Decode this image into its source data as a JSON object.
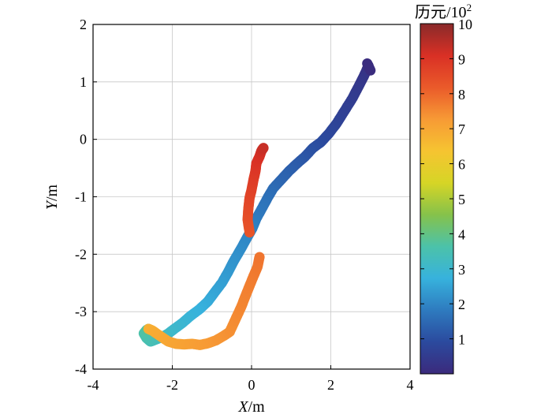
{
  "chart_data": {
    "type": "scatter",
    "title": "",
    "xlabel": {
      "var": "X",
      "unit": "/m"
    },
    "ylabel": {
      "var": "Y",
      "unit": "/m"
    },
    "xlim": [
      -4,
      4
    ],
    "ylim": [
      -4,
      2
    ],
    "xticks": [
      "-4",
      "-2",
      "0",
      "2",
      "4"
    ],
    "yticks": [
      "-4",
      "-3",
      "-2",
      "-1",
      "0",
      "1",
      "2"
    ],
    "grid": true,
    "colorbar": {
      "title_prefix": "历元/10",
      "title_sup": "2",
      "range": [
        0,
        10
      ],
      "ticks": [
        "1",
        "2",
        "3",
        "4",
        "5",
        "6",
        "7",
        "8",
        "9",
        "10"
      ],
      "colormap": [
        "#3b2a7c",
        "#2b4a9e",
        "#2e7bbf",
        "#37b2dd",
        "#4cc2a9",
        "#86c24a",
        "#d6d526",
        "#f6c431",
        "#f79a35",
        "#ea5a2a",
        "#d93025",
        "#8a2a2a"
      ]
    },
    "series": [
      {
        "x": [
          2.95,
          2.9,
          2.82,
          2.7,
          2.55,
          2.35,
          2.15,
          1.95,
          1.75,
          1.55,
          1.35,
          1.15,
          0.95,
          0.75,
          0.55,
          0.42,
          0.28,
          0.12,
          0.02,
          -0.12,
          -0.28,
          -0.45,
          -0.6,
          -0.75,
          -0.95,
          -1.1,
          -1.3,
          -1.55,
          -1.75,
          -1.95,
          -2.1,
          -2.25,
          -2.4,
          -2.55,
          -2.65,
          -2.72,
          -2.65,
          -2.6
        ],
        "y": [
          1.28,
          1.2,
          1.08,
          0.92,
          0.72,
          0.5,
          0.28,
          0.1,
          -0.05,
          -0.15,
          -0.3,
          -0.42,
          -0.55,
          -0.7,
          -0.85,
          -1.0,
          -1.18,
          -1.38,
          -1.55,
          -1.72,
          -1.92,
          -2.12,
          -2.32,
          -2.5,
          -2.68,
          -2.82,
          -2.95,
          -3.08,
          -3.2,
          -3.3,
          -3.38,
          -3.44,
          -3.48,
          -3.52,
          -3.46,
          -3.38,
          -3.32,
          -3.3
        ],
        "epoch": [
          0.1,
          0.2,
          0.3,
          0.4,
          0.5,
          0.6,
          0.7,
          0.8,
          0.9,
          1.0,
          1.1,
          1.2,
          1.3,
          1.4,
          1.5,
          1.6,
          1.7,
          1.8,
          1.9,
          2.0,
          2.1,
          2.2,
          2.3,
          2.4,
          2.5,
          2.6,
          2.7,
          2.8,
          2.9,
          3.0,
          3.1,
          3.2,
          3.3,
          3.4,
          3.5,
          3.6,
          3.7,
          3.8
        ]
      },
      {
        "x": [
          -2.6,
          -2.5,
          -2.4,
          -2.25,
          -2.1,
          -1.9,
          -1.7,
          -1.5,
          -1.3,
          -1.1,
          -0.9,
          -0.7,
          -0.55,
          -0.45,
          -0.35,
          -0.25,
          -0.15,
          -0.05,
          0.05,
          0.15,
          0.2
        ],
        "y": [
          -3.3,
          -3.33,
          -3.38,
          -3.45,
          -3.52,
          -3.56,
          -3.57,
          -3.56,
          -3.58,
          -3.55,
          -3.5,
          -3.42,
          -3.35,
          -3.2,
          -3.05,
          -2.9,
          -2.72,
          -2.55,
          -2.38,
          -2.22,
          -2.05
        ],
        "epoch": [
          6.8,
          6.85,
          6.9,
          6.95,
          7.0,
          7.05,
          7.1,
          7.15,
          7.2,
          7.25,
          7.3,
          7.35,
          7.4,
          7.45,
          7.5,
          7.55,
          7.6,
          7.65,
          7.7,
          7.75,
          7.8
        ]
      },
      {
        "x": [
          -0.05,
          -0.1,
          -0.08,
          -0.05,
          0.0,
          0.05,
          0.1,
          0.12,
          0.2,
          0.25,
          0.3
        ],
        "y": [
          -1.62,
          -1.4,
          -1.2,
          -1.02,
          -0.88,
          -0.7,
          -0.55,
          -0.42,
          -0.3,
          -0.2,
          -0.15
        ],
        "epoch": [
          8.3,
          8.4,
          8.5,
          8.6,
          8.7,
          8.8,
          8.9,
          9.0,
          9.1,
          9.2,
          9.3
        ]
      },
      {
        "x": [
          2.92,
          3.0
        ],
        "y": [
          1.32,
          1.2
        ],
        "epoch": [
          0.05,
          0.05
        ]
      }
    ]
  }
}
